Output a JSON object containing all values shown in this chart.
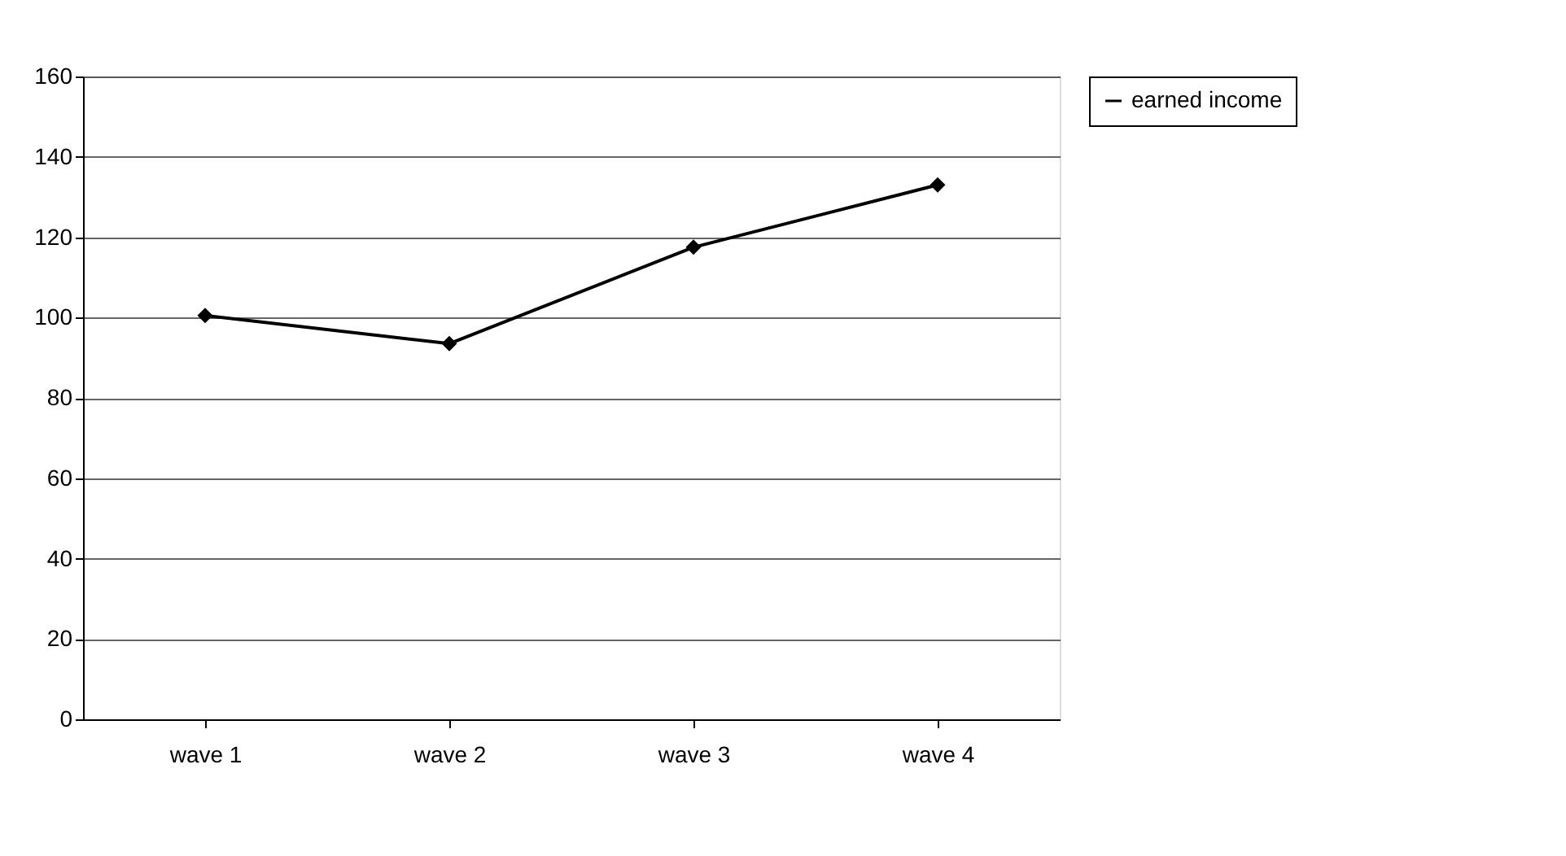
{
  "chart_data": {
    "type": "line",
    "categories": [
      "wave 1",
      "wave 2",
      "wave 3",
      "wave 4"
    ],
    "series": [
      {
        "name": "earned income",
        "color": "#000000",
        "values": [
          100.5,
          93.5,
          117.5,
          133
        ]
      }
    ],
    "ylim": [
      0,
      160
    ],
    "yticks": [
      0,
      20,
      40,
      60,
      80,
      100,
      120,
      140,
      160
    ],
    "grid": "y",
    "legend": "right",
    "marker": "diamond",
    "line_style": "solid"
  }
}
